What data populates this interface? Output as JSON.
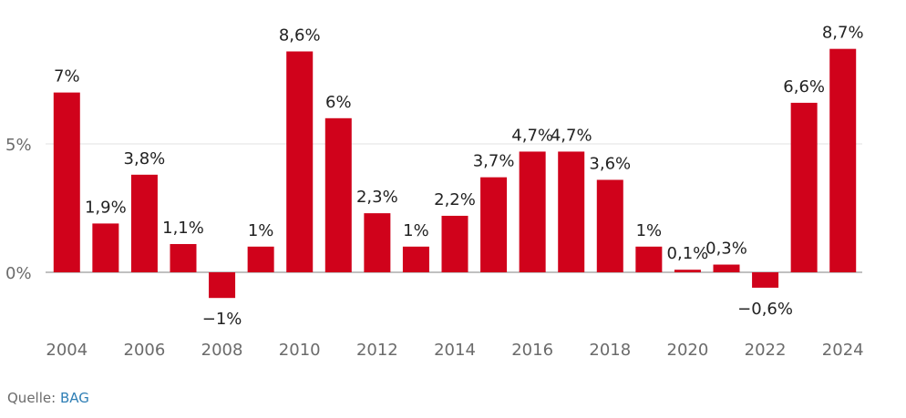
{
  "chart_data": {
    "type": "bar",
    "title": "",
    "xlabel": "",
    "ylabel": "",
    "categories": [
      "2004",
      "2005",
      "2006",
      "2007",
      "2008",
      "2009",
      "2010",
      "2011",
      "2012",
      "2013",
      "2014",
      "2015",
      "2016",
      "2017",
      "2018",
      "2019",
      "2020",
      "2021",
      "2022",
      "2023",
      "2024"
    ],
    "values": [
      7.0,
      1.9,
      3.8,
      1.1,
      -1.0,
      1.0,
      8.6,
      6.0,
      2.3,
      1.0,
      2.2,
      3.7,
      4.7,
      4.7,
      3.6,
      1.0,
      0.1,
      0.3,
      -0.6,
      6.6,
      8.7
    ],
    "data_labels": [
      "7%",
      "1,9%",
      "3,8%",
      "1,1%",
      "−1%",
      "1%",
      "8,6%",
      "6%",
      "2,3%",
      "1%",
      "2,2%",
      "3,7%",
      "4,7%",
      "4,7%",
      "3,6%",
      "1%",
      "0,1%",
      "0,3%",
      "−0,6%",
      "6,6%",
      "8,7%"
    ],
    "x_tick_labels": [
      "2004",
      "2006",
      "2008",
      "2010",
      "2012",
      "2014",
      "2016",
      "2018",
      "2020",
      "2022",
      "2024"
    ],
    "y_ticks": [
      0,
      5
    ],
    "y_tick_labels": [
      "0%",
      "5%"
    ],
    "ylim": [
      -2.1,
      9.1
    ],
    "grid": true,
    "bar_color": "#d0021b"
  },
  "source": {
    "label": "Quelle:",
    "name": "BAG"
  }
}
